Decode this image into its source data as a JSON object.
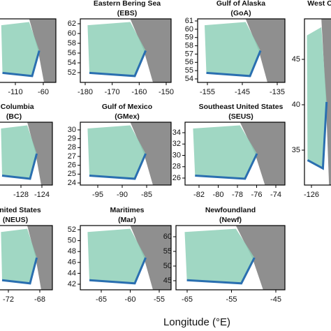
{
  "panels": [
    {
      "title": null,
      "subtitle": null,
      "xticks": [
        -110,
        -60
      ],
      "yticks": []
    },
    {
      "title": "Eastern Bering Sea",
      "subtitle": "(EBS)",
      "xticks": [
        -180,
        -170,
        -160,
        -150
      ],
      "yticks": [
        52,
        54,
        56,
        58,
        60,
        62
      ]
    },
    {
      "title": "Gulf of Alaska",
      "subtitle": "(GoA)",
      "xticks": [
        -155,
        -145,
        -135
      ],
      "yticks": [
        54,
        55,
        56,
        57,
        58,
        59,
        60,
        61
      ]
    },
    {
      "title": "West C",
      "subtitle": null,
      "xticks": [
        -126
      ],
      "yticks": [
        35,
        40,
        45
      ]
    },
    {
      "title": "h Columbia",
      "subtitle": "(BC)",
      "xticks": [
        -128,
        -124
      ],
      "yticks": []
    },
    {
      "title": "Gulf of Mexico",
      "subtitle": "(GMex)",
      "xticks": [
        -95,
        -90,
        -85
      ],
      "yticks": [
        24,
        25,
        26,
        27,
        28,
        29,
        30
      ]
    },
    {
      "title": "Southeast United States",
      "subtitle": "(SEUS)",
      "xticks": [
        -82,
        -80,
        -78,
        -76,
        -74
      ],
      "yticks": [
        26,
        28,
        30,
        32,
        34
      ]
    },
    {
      "title": "t United States",
      "subtitle": "(NEUS)",
      "xticks": [
        -72,
        -68
      ],
      "yticks": []
    },
    {
      "title": "Maritimes",
      "subtitle": "(Mar)",
      "xticks": [
        -65,
        -60,
        -55
      ],
      "yticks": [
        42,
        44,
        46,
        48,
        50,
        52
      ]
    },
    {
      "title": "Newfoundland",
      "subtitle": "(Newf)",
      "xticks": [
        -65,
        -55,
        -45
      ],
      "yticks": [
        45,
        50,
        55,
        60
      ]
    }
  ],
  "x_axis_label": "Longitude (°E)"
}
